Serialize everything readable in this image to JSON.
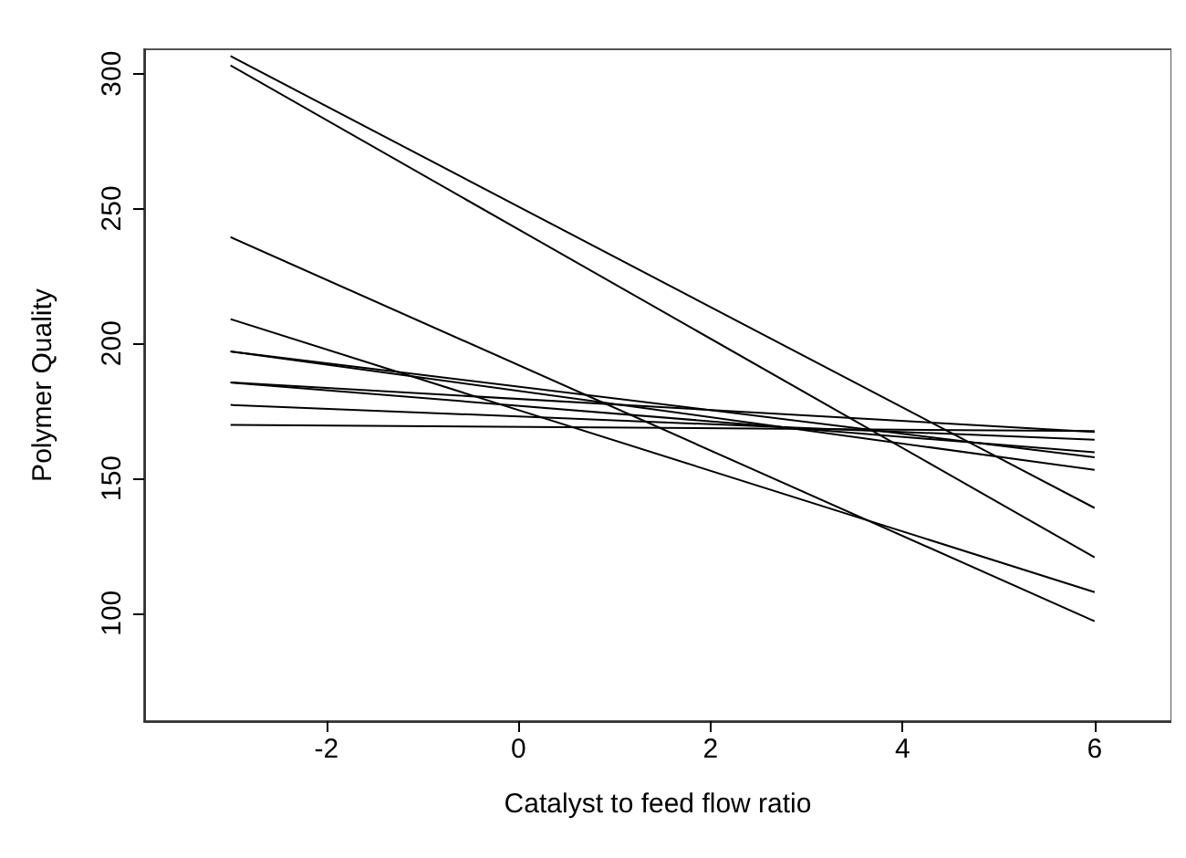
{
  "chart_data": {
    "type": "line",
    "xlabel": "Catalyst to feed flow ratio",
    "ylabel": "Polymer Quality",
    "x": [
      -3,
      6
    ],
    "series": [
      {
        "color": "#000000",
        "values": [
          306.5,
          139
        ]
      },
      {
        "color": "#000000",
        "values": [
          303,
          120.7
        ]
      },
      {
        "color": "#000000",
        "values": [
          239.4,
          97
        ]
      },
      {
        "color": "#000000",
        "values": [
          209,
          107.8
        ]
      },
      {
        "color": "#000000",
        "values": [
          197,
          157.8
        ]
      },
      {
        "color": "#000000",
        "values": [
          197,
          153.1
        ]
      },
      {
        "color": "#000000",
        "values": [
          185.5,
          167.2
        ]
      },
      {
        "color": "#000000",
        "values": [
          185.5,
          159.6
        ]
      },
      {
        "color": "#000000",
        "values": [
          177.2,
          164.3
        ]
      },
      {
        "color": "#000000",
        "values": [
          169.8,
          167.5
        ]
      }
    ],
    "xlim": [
      -3.9,
      6.8
    ],
    "ylim": [
      60,
      309
    ],
    "xticks": [
      -2,
      0,
      2,
      4,
      6
    ],
    "yticks": [
      100,
      150,
      200,
      250,
      300
    ],
    "marker": "none",
    "line_style": "solid"
  }
}
